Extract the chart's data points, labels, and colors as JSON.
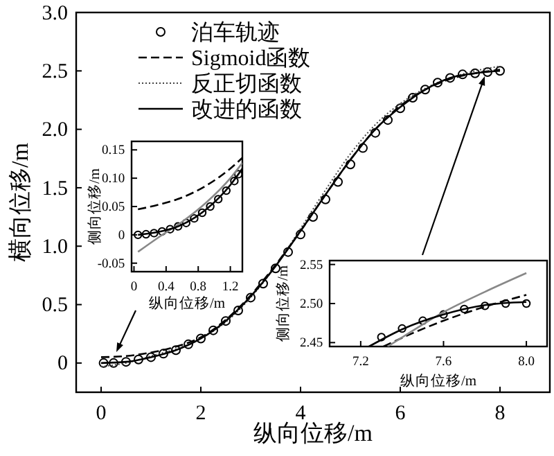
{
  "chart_data": [
    {
      "type": "line",
      "xlabel": "纵向位移/m",
      "ylabel": "横向位移/m",
      "xlim": [
        -0.5,
        9
      ],
      "xticks": [
        0,
        2,
        4,
        6,
        8
      ],
      "ylim": [
        -0.25,
        3
      ],
      "yticks": [
        0,
        0.5,
        {
          "value": 1,
          "label": "1.0"
        },
        1.5,
        {
          "value": 2,
          "label": "2.0"
        },
        2.5,
        {
          "value": 3,
          "label": "3.0"
        }
      ],
      "legend": "top left",
      "series": [
        {
          "name": "泊车轨迹",
          "type": "scatter",
          "marker": "circle",
          "color": "#000000",
          "x": [
            0.05,
            0.25,
            0.5,
            0.75,
            1,
            1.25,
            1.5,
            1.75,
            2,
            2.25,
            2.5,
            2.75,
            3,
            3.25,
            3.5,
            3.75,
            4,
            4.25,
            4.5,
            4.75,
            5,
            5.25,
            5.5,
            5.75,
            6,
            6.25,
            6.5,
            6.75,
            7,
            7.25,
            7.5,
            7.75,
            8
          ],
          "values": [
            0,
            0,
            0.01,
            0.03,
            0.05,
            0.08,
            0.11,
            0.16,
            0.21,
            0.28,
            0.36,
            0.45,
            0.56,
            0.68,
            0.81,
            0.95,
            1.1,
            1.25,
            1.4,
            1.55,
            1.7,
            1.84,
            1.97,
            2.08,
            2.18,
            2.27,
            2.34,
            2.4,
            2.44,
            2.47,
            2.48,
            2.49,
            2.5
          ]
        },
        {
          "name": "Sigmoid函数",
          "type": "line",
          "line_style": "dashed",
          "color": "#000000",
          "x": [
            0,
            0.5,
            1,
            1.5,
            2,
            2.5,
            3,
            3.5,
            4,
            4.5,
            5,
            5.5,
            6,
            6.5,
            7,
            7.5,
            8
          ],
          "values": [
            0.05,
            0.06,
            0.09,
            0.14,
            0.22,
            0.37,
            0.58,
            0.84,
            1.13,
            1.44,
            1.74,
            2.0,
            2.2,
            2.34,
            2.43,
            2.48,
            2.51
          ]
        },
        {
          "name": "反正切函数",
          "type": "line",
          "line_style": "dotted",
          "color": "#444444",
          "x": [
            0,
            0.5,
            1,
            1.5,
            2,
            2.5,
            3,
            3.5,
            4,
            4.5,
            5,
            5.5,
            6,
            6.5,
            7,
            7.5,
            8
          ],
          "values": [
            -0.03,
            0.0,
            0.06,
            0.12,
            0.21,
            0.35,
            0.56,
            0.83,
            1.15,
            1.48,
            1.79,
            2.04,
            2.22,
            2.35,
            2.44,
            2.5,
            2.54
          ]
        },
        {
          "name": "改进的函数",
          "type": "line",
          "line_style": "solid",
          "color": "#000000",
          "x": [
            0,
            0.5,
            1,
            1.5,
            2,
            2.5,
            3,
            3.5,
            4,
            4.5,
            5,
            5.5,
            6,
            6.5,
            7,
            7.5,
            8
          ],
          "values": [
            0,
            0.01,
            0.05,
            0.11,
            0.21,
            0.36,
            0.57,
            0.83,
            1.13,
            1.44,
            1.74,
            2.0,
            2.19,
            2.34,
            2.44,
            2.48,
            2.5
          ]
        }
      ]
    },
    {
      "type": "line",
      "xlabel": "纵向位移/m",
      "ylabel": "侧向位移/m",
      "xlim": [
        -0.03,
        1.35
      ],
      "xticks": [
        0,
        0.4,
        0.8,
        1.2
      ],
      "ylim": [
        -0.065,
        0.165
      ],
      "yticks": [
        {
          "value": -0.05,
          "label": "-0.05"
        },
        0,
        0.05,
        {
          "value": 0.1,
          "label": "0.10"
        },
        0.15
      ],
      "series": [
        {
          "type": "scatter",
          "marker": "circle",
          "color": "#000000",
          "x": [
            0.05,
            0.15,
            0.25,
            0.35,
            0.45,
            0.55,
            0.65,
            0.75,
            0.85,
            0.95,
            1.05,
            1.15,
            1.25,
            1.3
          ],
          "values": [
            0,
            0.001,
            0.003,
            0.006,
            0.01,
            0.015,
            0.021,
            0.029,
            0.039,
            0.05,
            0.063,
            0.078,
            0.095,
            0.107
          ]
        },
        {
          "type": "line",
          "line_style": "dashed",
          "color": "#000000",
          "x": [
            0.05,
            0.3,
            0.6,
            0.9,
            1.2,
            1.35
          ],
          "values": [
            0.045,
            0.053,
            0.066,
            0.087,
            0.117,
            0.136
          ]
        },
        {
          "type": "line",
          "line_style": "solid",
          "color": "#888888",
          "x": [
            0.05,
            0.3,
            0.6,
            0.9,
            1.2,
            1.35
          ],
          "values": [
            -0.03,
            -0.005,
            0.023,
            0.057,
            0.1,
            0.127
          ]
        },
        {
          "type": "line",
          "line_style": "solid",
          "color": "#000000",
          "x": [
            0.05,
            0.3,
            0.6,
            0.9,
            1.2,
            1.35
          ],
          "values": [
            0,
            0.005,
            0.018,
            0.045,
            0.088,
            0.117
          ]
        }
      ]
    },
    {
      "type": "line",
      "xlabel": "纵向位移/m",
      "ylabel": "侧向位移/m",
      "xlim": [
        7.05,
        8.1
      ],
      "xticks": [
        7.2,
        7.6,
        {
          "value": 8,
          "label": "8.0"
        }
      ],
      "ylim": [
        2.445,
        2.555
      ],
      "yticks": [
        2.45,
        {
          "value": 2.5,
          "label": "2.50"
        },
        2.55
      ],
      "series": [
        {
          "type": "scatter",
          "marker": "circle",
          "color": "#000000",
          "x": [
            7.3,
            7.4,
            7.5,
            7.6,
            7.7,
            7.8,
            7.9,
            8.0
          ],
          "values": [
            2.457,
            2.468,
            2.478,
            2.486,
            2.493,
            2.497,
            2.5,
            2.5
          ]
        },
        {
          "type": "line",
          "line_style": "dashed",
          "color": "#000000",
          "x": [
            7.31,
            7.45,
            7.6,
            7.8,
            8.0
          ],
          "values": [
            2.445,
            2.462,
            2.478,
            2.496,
            2.511
          ]
        },
        {
          "type": "line",
          "line_style": "solid",
          "color": "#888888",
          "x": [
            7.33,
            7.45,
            7.6,
            7.8,
            8.0
          ],
          "values": [
            2.445,
            2.465,
            2.489,
            2.515,
            2.539
          ]
        },
        {
          "type": "line",
          "line_style": "solid",
          "color": "#000000",
          "x": [
            7.24,
            7.4,
            7.6,
            7.8,
            8.0
          ],
          "values": [
            2.445,
            2.467,
            2.486,
            2.498,
            2.502
          ]
        }
      ]
    }
  ]
}
